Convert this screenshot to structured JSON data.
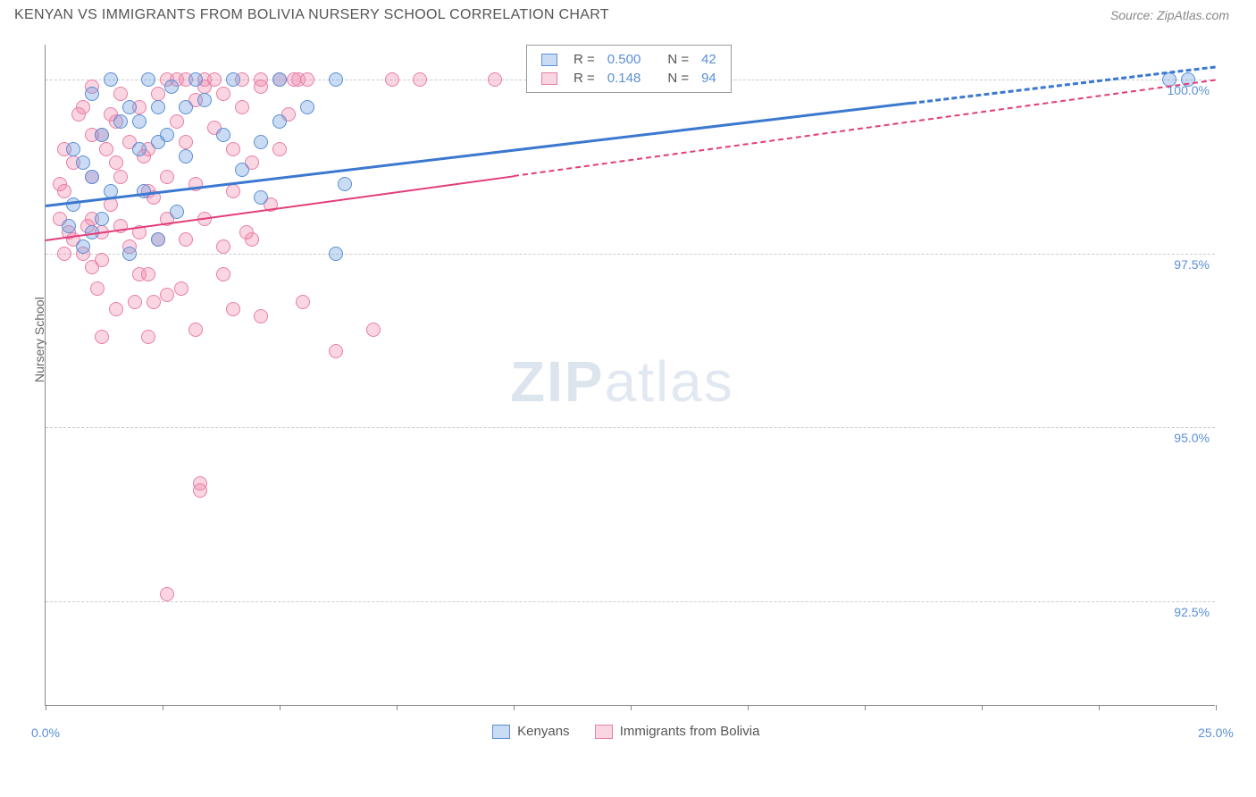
{
  "header": {
    "title": "KENYAN VS IMMIGRANTS FROM BOLIVIA NURSERY SCHOOL CORRELATION CHART",
    "source": "Source: ZipAtlas.com"
  },
  "chart": {
    "type": "scatter",
    "y_axis_label": "Nursery School",
    "background_color": "#ffffff",
    "grid_color": "#cccccc",
    "axis_color": "#888888",
    "label_color": "#5b8fd6",
    "xlim": [
      0,
      25
    ],
    "ylim": [
      91.0,
      100.5
    ],
    "x_ticks": [
      0,
      2.5,
      5,
      7.5,
      10,
      12.5,
      15,
      17.5,
      20,
      22.5,
      25
    ],
    "x_tick_labels": {
      "0": "0.0%",
      "25": "25.0%"
    },
    "y_ticks": [
      92.5,
      95.0,
      97.5,
      100.0
    ],
    "y_tick_labels": [
      "92.5%",
      "95.0%",
      "97.5%",
      "100.0%"
    ],
    "label_fontsize": 14,
    "watermark": {
      "bold": "ZIP",
      "light": "atlas"
    },
    "series": [
      {
        "name": "Kenyans",
        "color_fill": "rgba(99,155,222,0.35)",
        "color_stroke": "#5b8fd6",
        "r_value": "0.500",
        "n_value": "42",
        "trend": {
          "x1": 0,
          "y1": 98.2,
          "x2": 25,
          "y2": 100.2,
          "solid_until_x": 18.5,
          "color": "#3b78cf",
          "width": 3
        },
        "points": [
          [
            1.0,
            97.8
          ],
          [
            1.0,
            98.6
          ],
          [
            0.6,
            98.2
          ],
          [
            0.5,
            97.9
          ],
          [
            1.2,
            98.0
          ],
          [
            0.8,
            97.6
          ],
          [
            1.4,
            98.4
          ],
          [
            2.0,
            99.0
          ],
          [
            2.0,
            99.4
          ],
          [
            2.4,
            99.6
          ],
          [
            2.4,
            99.1
          ],
          [
            3.0,
            99.6
          ],
          [
            3.0,
            98.9
          ],
          [
            3.4,
            99.7
          ],
          [
            3.2,
            100.0
          ],
          [
            2.8,
            98.1
          ],
          [
            4.0,
            100.0
          ],
          [
            4.2,
            98.7
          ],
          [
            5.0,
            99.4
          ],
          [
            5.0,
            100.0
          ],
          [
            5.6,
            99.6
          ],
          [
            6.2,
            100.0
          ],
          [
            6.4,
            98.5
          ],
          [
            6.2,
            97.5
          ],
          [
            2.4,
            97.7
          ],
          [
            1.8,
            97.5
          ],
          [
            1.8,
            99.6
          ],
          [
            2.6,
            99.2
          ],
          [
            1.6,
            99.4
          ],
          [
            1.2,
            99.2
          ],
          [
            0.8,
            98.8
          ],
          [
            0.6,
            99.0
          ],
          [
            1.0,
            99.8
          ],
          [
            1.4,
            100.0
          ],
          [
            2.2,
            100.0
          ],
          [
            4.6,
            99.1
          ],
          [
            4.6,
            98.3
          ],
          [
            3.8,
            99.2
          ],
          [
            2.1,
            98.4
          ],
          [
            24.0,
            100.0
          ],
          [
            24.4,
            100.0
          ],
          [
            2.7,
            99.9
          ]
        ]
      },
      {
        "name": "Immigrants from Bolivia",
        "color_fill": "rgba(241,136,173,0.35)",
        "color_stroke": "#e87fa5",
        "r_value": "0.148",
        "n_value": "94",
        "trend": {
          "x1": 0,
          "y1": 97.7,
          "x2": 25,
          "y2": 100.0,
          "solid_until_x": 10.0,
          "color": "#e23d7a",
          "width": 2.5
        },
        "points": [
          [
            0.5,
            97.8
          ],
          [
            0.4,
            97.5
          ],
          [
            0.3,
            98.0
          ],
          [
            0.6,
            97.7
          ],
          [
            0.8,
            97.5
          ],
          [
            0.9,
            97.9
          ],
          [
            1.0,
            97.3
          ],
          [
            1.0,
            98.0
          ],
          [
            1.2,
            97.4
          ],
          [
            1.2,
            97.8
          ],
          [
            1.3,
            99.0
          ],
          [
            1.4,
            98.2
          ],
          [
            1.5,
            98.8
          ],
          [
            1.5,
            99.4
          ],
          [
            1.6,
            97.9
          ],
          [
            1.6,
            99.8
          ],
          [
            1.8,
            97.6
          ],
          [
            1.8,
            99.1
          ],
          [
            2.0,
            97.2
          ],
          [
            2.0,
            97.8
          ],
          [
            2.0,
            99.6
          ],
          [
            2.2,
            98.4
          ],
          [
            2.2,
            99.0
          ],
          [
            2.4,
            97.7
          ],
          [
            2.4,
            99.8
          ],
          [
            2.6,
            98.0
          ],
          [
            2.6,
            98.6
          ],
          [
            2.8,
            99.4
          ],
          [
            2.8,
            100.0
          ],
          [
            3.0,
            97.7
          ],
          [
            3.0,
            99.1
          ],
          [
            3.0,
            100.0
          ],
          [
            3.2,
            98.5
          ],
          [
            3.2,
            99.7
          ],
          [
            3.4,
            98.0
          ],
          [
            3.4,
            99.9
          ],
          [
            3.4,
            100.0
          ],
          [
            3.6,
            99.3
          ],
          [
            3.8,
            97.6
          ],
          [
            3.8,
            99.8
          ],
          [
            4.0,
            99.0
          ],
          [
            4.0,
            98.4
          ],
          [
            4.2,
            99.6
          ],
          [
            4.2,
            100.0
          ],
          [
            4.4,
            98.8
          ],
          [
            4.4,
            97.7
          ],
          [
            4.6,
            100.0
          ],
          [
            4.8,
            98.2
          ],
          [
            5.0,
            99.0
          ],
          [
            5.0,
            100.0
          ],
          [
            5.2,
            99.5
          ],
          [
            5.4,
            100.0
          ],
          [
            5.6,
            100.0
          ],
          [
            0.8,
            99.6
          ],
          [
            1.2,
            99.2
          ],
          [
            1.0,
            98.6
          ],
          [
            0.6,
            98.8
          ],
          [
            0.4,
            98.4
          ],
          [
            0.4,
            99.0
          ],
          [
            1.0,
            99.2
          ],
          [
            1.4,
            99.5
          ],
          [
            1.6,
            98.6
          ],
          [
            2.1,
            98.9
          ],
          [
            2.3,
            98.3
          ],
          [
            1.1,
            97.0
          ],
          [
            1.5,
            96.7
          ],
          [
            1.9,
            96.8
          ],
          [
            2.3,
            96.8
          ],
          [
            2.6,
            96.9
          ],
          [
            2.9,
            97.0
          ],
          [
            3.2,
            96.4
          ],
          [
            3.3,
            94.2
          ],
          [
            3.3,
            94.1
          ],
          [
            4.0,
            96.7
          ],
          [
            4.6,
            96.6
          ],
          [
            5.5,
            96.8
          ],
          [
            6.2,
            96.1
          ],
          [
            7.0,
            96.4
          ],
          [
            7.4,
            100.0
          ],
          [
            8.0,
            100.0
          ],
          [
            9.6,
            100.0
          ],
          [
            1.2,
            96.3
          ],
          [
            2.2,
            96.3
          ],
          [
            2.2,
            97.2
          ],
          [
            2.6,
            92.6
          ],
          [
            4.6,
            99.9
          ],
          [
            5.3,
            100.0
          ],
          [
            3.6,
            100.0
          ],
          [
            2.6,
            100.0
          ],
          [
            1.0,
            99.9
          ],
          [
            0.7,
            99.5
          ],
          [
            0.3,
            98.5
          ],
          [
            4.3,
            97.8
          ],
          [
            3.8,
            97.2
          ]
        ]
      }
    ],
    "bottom_legend": [
      {
        "label": "Kenyans",
        "fill": "rgba(99,155,222,0.35)",
        "stroke": "#5b8fd6"
      },
      {
        "label": "Immigrants from Bolivia",
        "fill": "rgba(241,136,173,0.35)",
        "stroke": "#e87fa5"
      }
    ]
  }
}
